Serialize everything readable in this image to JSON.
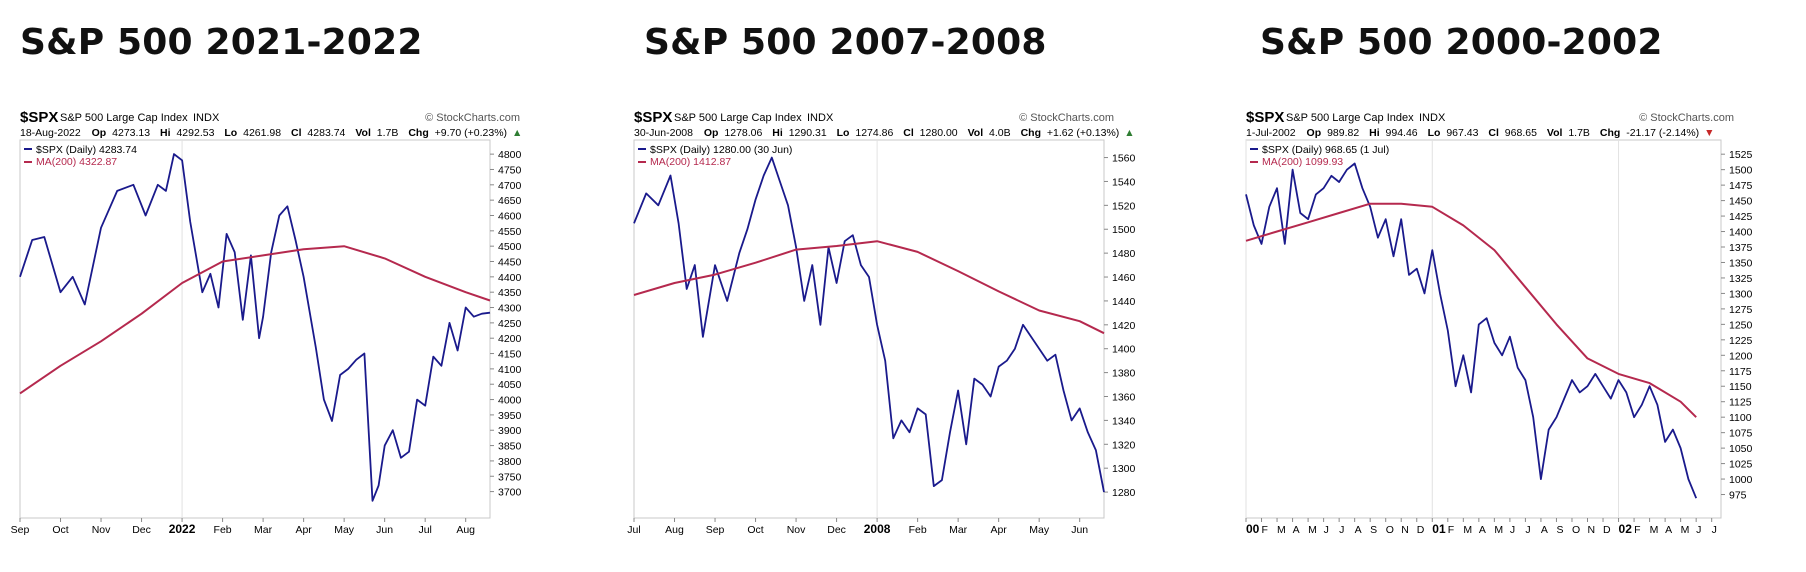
{
  "panels": [
    {
      "title": "S&P 500 2021-2022",
      "symbol": "$SPX",
      "name": "S&P 500 Large Cap Index",
      "exchange": "INDX",
      "brand": "© StockCharts.com",
      "date": "18-Aug-2022",
      "stats": {
        "op_label": "Op",
        "op": "4273.13",
        "hi_label": "Hi",
        "hi": "4292.53",
        "lo_label": "Lo",
        "lo": "4261.98",
        "cl_label": "Cl",
        "cl": "4283.74",
        "vol_label": "Vol",
        "vol": "1.7B",
        "chg_label": "Chg",
        "chg": "+9.70 (+0.23%)",
        "chg_arrow": "▲"
      },
      "legend_price": "$SPX (Daily) 4283.74",
      "legend_ma": "MA(200) 4322.87"
    },
    {
      "title": "S&P 500 2007-2008",
      "symbol": "$SPX",
      "name": "S&P 500 Large Cap Index",
      "exchange": "INDX",
      "brand": "© StockCharts.com",
      "date": "30-Jun-2008",
      "stats": {
        "op_label": "Op",
        "op": "1278.06",
        "hi_label": "Hi",
        "hi": "1290.31",
        "lo_label": "Lo",
        "lo": "1274.86",
        "cl_label": "Cl",
        "cl": "1280.00",
        "vol_label": "Vol",
        "vol": "4.0B",
        "chg_label": "Chg",
        "chg": "+1.62 (+0.13%)",
        "chg_arrow": "▲"
      },
      "legend_price": "$SPX (Daily) 1280.00 (30 Jun)",
      "legend_ma": "MA(200) 1412.87"
    },
    {
      "title": "S&P 500 2000-2002",
      "symbol": "$SPX",
      "name": "S&P 500 Large Cap Index",
      "exchange": "INDX",
      "brand": "© StockCharts.com",
      "date": "1-Jul-2002",
      "stats": {
        "op_label": "Op",
        "op": "989.82",
        "hi_label": "Hi",
        "hi": "994.46",
        "lo_label": "Lo",
        "lo": "967.43",
        "cl_label": "Cl",
        "cl": "968.65",
        "vol_label": "Vol",
        "vol": "1.7B",
        "chg_label": "Chg",
        "chg": "-21.17 (-2.14%)",
        "chg_arrow": "▼"
      },
      "legend_price": "$SPX (Daily) 968.65 (1 Jul)",
      "legend_ma": "MA(200) 1099.93"
    }
  ],
  "chart_data": [
    {
      "type": "line",
      "title": "S&P 500 2021-2022",
      "colors": {
        "price": "#1a1a8c",
        "ma": "#b5294e"
      },
      "x_tick_labels": [
        "Sep",
        "Oct",
        "Nov",
        "Dec",
        "2022",
        "Feb",
        "Mar",
        "Apr",
        "May",
        "Jun",
        "Jul",
        "Aug"
      ],
      "x_tick_bold": [
        4
      ],
      "y_ticks": [
        3700,
        3750,
        3800,
        3850,
        3900,
        3950,
        4000,
        4050,
        4100,
        4150,
        4200,
        4250,
        4300,
        4350,
        4400,
        4450,
        4500,
        4550,
        4600,
        4650,
        4700,
        4750,
        4800
      ],
      "ylim": [
        3640,
        4820
      ],
      "grid": false,
      "series": [
        {
          "name": "$SPX (Daily)",
          "x": [
            0,
            0.3,
            0.6,
            1.0,
            1.3,
            1.6,
            2.0,
            2.4,
            2.8,
            3.1,
            3.4,
            3.6,
            3.8,
            4.0,
            4.2,
            4.5,
            4.7,
            4.9,
            5.1,
            5.3,
            5.5,
            5.7,
            5.9,
            6.0,
            6.2,
            6.4,
            6.6,
            6.8,
            7.0,
            7.3,
            7.5,
            7.7,
            7.9,
            8.1,
            8.3,
            8.5,
            8.7,
            8.85,
            9.0,
            9.2,
            9.4,
            9.6,
            9.8,
            10.0,
            10.2,
            10.4,
            10.6,
            10.8,
            11.0,
            11.2,
            11.4,
            11.6
          ],
          "values": [
            4400,
            4520,
            4530,
            4350,
            4400,
            4310,
            4560,
            4680,
            4700,
            4600,
            4700,
            4680,
            4800,
            4780,
            4580,
            4350,
            4410,
            4300,
            4540,
            4480,
            4260,
            4470,
            4200,
            4270,
            4480,
            4600,
            4630,
            4520,
            4400,
            4170,
            4000,
            3930,
            4080,
            4100,
            4130,
            4150,
            3670,
            3720,
            3850,
            3900,
            3810,
            3830,
            4000,
            3980,
            4140,
            4110,
            4250,
            4160,
            4300,
            4270,
            4280,
            4283
          ]
        },
        {
          "name": "MA(200)",
          "x": [
            0,
            1,
            2,
            3,
            4,
            5,
            6,
            7,
            8,
            9,
            10,
            11,
            11.6
          ],
          "values": [
            4020,
            4110,
            4190,
            4280,
            4380,
            4450,
            4470,
            4490,
            4500,
            4460,
            4400,
            4350,
            4323
          ]
        }
      ]
    },
    {
      "type": "line",
      "title": "S&P 500 2007-2008",
      "colors": {
        "price": "#1a1a8c",
        "ma": "#b5294e"
      },
      "x_tick_labels": [
        "Jul",
        "Aug",
        "Sep",
        "Oct",
        "Nov",
        "Dec",
        "2008",
        "Feb",
        "Mar",
        "Apr",
        "May",
        "Jun"
      ],
      "x_tick_bold": [
        6
      ],
      "y_ticks": [
        1280,
        1300,
        1320,
        1340,
        1360,
        1380,
        1400,
        1420,
        1440,
        1460,
        1480,
        1500,
        1520,
        1540,
        1560
      ],
      "ylim": [
        1265,
        1568
      ],
      "grid": false,
      "series": [
        {
          "name": "$SPX (Daily)",
          "x": [
            0,
            0.3,
            0.6,
            0.9,
            1.1,
            1.3,
            1.5,
            1.7,
            2.0,
            2.3,
            2.6,
            2.8,
            3.0,
            3.2,
            3.4,
            3.6,
            3.8,
            4.0,
            4.2,
            4.4,
            4.6,
            4.8,
            5.0,
            5.2,
            5.4,
            5.6,
            5.8,
            6.0,
            6.2,
            6.4,
            6.6,
            6.8,
            7.0,
            7.2,
            7.4,
            7.6,
            7.8,
            8.0,
            8.2,
            8.4,
            8.6,
            8.8,
            9.0,
            9.2,
            9.4,
            9.6,
            9.8,
            10.0,
            10.2,
            10.4,
            10.6,
            10.8,
            11.0,
            11.2,
            11.4,
            11.6
          ],
          "values": [
            1505,
            1530,
            1520,
            1545,
            1505,
            1450,
            1470,
            1410,
            1470,
            1440,
            1480,
            1500,
            1525,
            1545,
            1560,
            1540,
            1520,
            1485,
            1440,
            1470,
            1420,
            1485,
            1455,
            1490,
            1495,
            1470,
            1460,
            1420,
            1390,
            1325,
            1340,
            1330,
            1350,
            1345,
            1285,
            1290,
            1330,
            1365,
            1320,
            1375,
            1370,
            1360,
            1385,
            1390,
            1400,
            1420,
            1410,
            1400,
            1390,
            1395,
            1365,
            1340,
            1350,
            1330,
            1315,
            1280
          ]
        },
        {
          "name": "MA(200)",
          "x": [
            0,
            1,
            2,
            3,
            4,
            5,
            6,
            7,
            8,
            9,
            10,
            11,
            11.6
          ],
          "values": [
            1445,
            1455,
            1462,
            1472,
            1483,
            1486,
            1490,
            1481,
            1465,
            1448,
            1432,
            1423,
            1413
          ]
        }
      ]
    },
    {
      "type": "line",
      "title": "S&P 500 2000-2002",
      "colors": {
        "price": "#1a1a8c",
        "ma": "#b5294e"
      },
      "x_tick_labels": [
        "00",
        "F",
        "M",
        "A",
        "M",
        "J",
        "J",
        "A",
        "S",
        "O",
        "N",
        "D",
        "01",
        "F",
        "M",
        "A",
        "M",
        "J",
        "J",
        "A",
        "S",
        "O",
        "N",
        "D",
        "02",
        "F",
        "M",
        "A",
        "M",
        "J",
        "J"
      ],
      "x_tick_bold": [
        0,
        12,
        24
      ],
      "y_ticks": [
        975,
        1000,
        1025,
        1050,
        1075,
        1100,
        1125,
        1150,
        1175,
        1200,
        1225,
        1250,
        1275,
        1300,
        1325,
        1350,
        1375,
        1400,
        1425,
        1450,
        1475,
        1500,
        1525
      ],
      "ylim": [
        950,
        1535
      ],
      "grid": false,
      "series": [
        {
          "name": "$SPX (Daily)",
          "x": [
            0,
            0.5,
            1.0,
            1.5,
            2.0,
            2.5,
            3.0,
            3.5,
            4.0,
            4.5,
            5.0,
            5.5,
            6.0,
            6.5,
            7.0,
            7.5,
            8.0,
            8.5,
            9.0,
            9.5,
            10.0,
            10.5,
            11.0,
            11.5,
            12.0,
            12.5,
            13.0,
            13.5,
            14.0,
            14.5,
            15.0,
            15.5,
            16.0,
            16.5,
            17.0,
            17.5,
            18.0,
            18.5,
            19.0,
            19.5,
            20.0,
            20.5,
            21.0,
            21.5,
            22.0,
            22.5,
            23.0,
            23.5,
            24.0,
            24.5,
            25.0,
            25.5,
            26.0,
            26.5,
            27.0,
            27.5,
            28.0,
            28.5,
            29.0
          ],
          "values": [
            1460,
            1410,
            1380,
            1440,
            1470,
            1380,
            1500,
            1430,
            1420,
            1460,
            1470,
            1490,
            1480,
            1500,
            1510,
            1470,
            1440,
            1390,
            1420,
            1360,
            1420,
            1330,
            1340,
            1300,
            1370,
            1300,
            1240,
            1150,
            1200,
            1140,
            1250,
            1260,
            1220,
            1200,
            1230,
            1180,
            1160,
            1100,
            1000,
            1080,
            1100,
            1130,
            1160,
            1140,
            1150,
            1170,
            1150,
            1130,
            1160,
            1140,
            1100,
            1120,
            1150,
            1120,
            1060,
            1080,
            1050,
            1000,
            969
          ]
        },
        {
          "name": "MA(200)",
          "x": [
            0,
            2,
            4,
            6,
            8,
            10,
            12,
            14,
            16,
            18,
            20,
            22,
            24,
            26,
            28,
            29
          ],
          "values": [
            1385,
            1400,
            1415,
            1430,
            1445,
            1445,
            1440,
            1410,
            1370,
            1310,
            1250,
            1195,
            1170,
            1155,
            1125,
            1100
          ]
        }
      ]
    }
  ]
}
